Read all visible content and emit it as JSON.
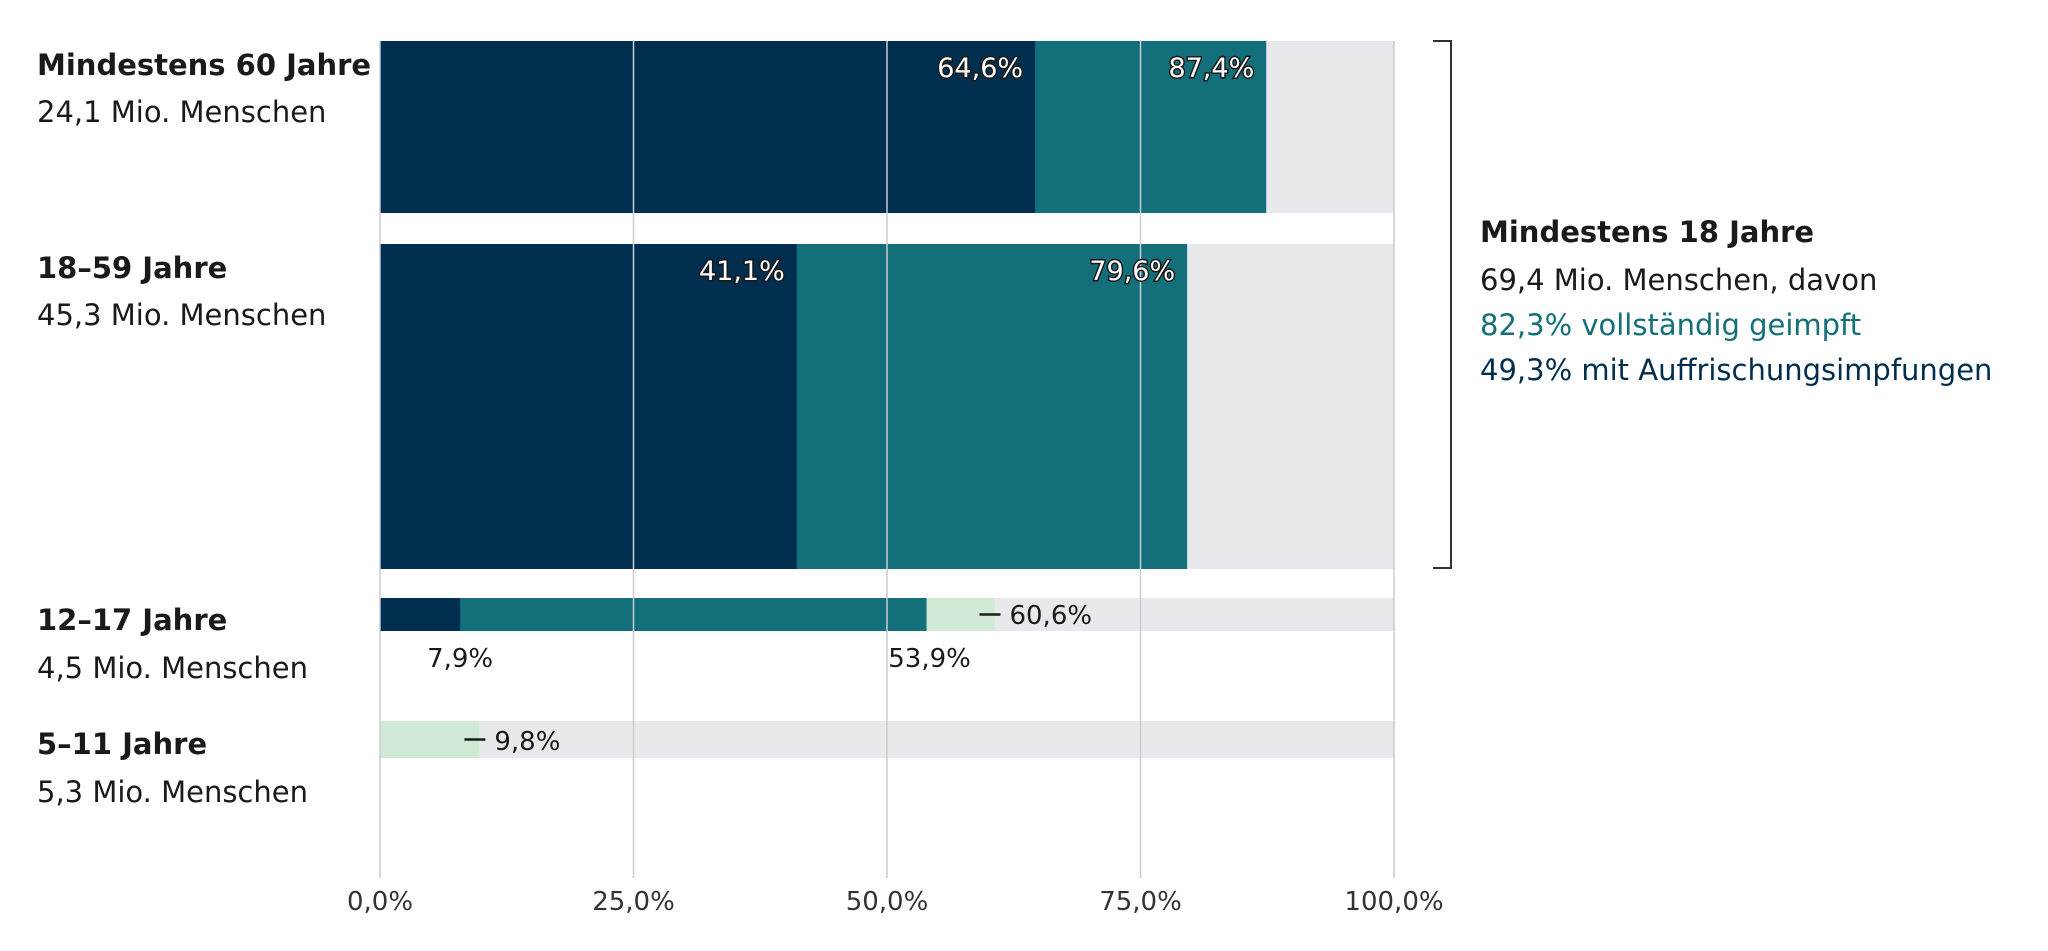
{
  "colors": {
    "booster": "#002e4f",
    "complete": "#13707a",
    "first_dose": "#cfe9d4",
    "track": "#e8e9ec",
    "grid": "#c9ccd1"
  },
  "chart_data": {
    "type": "bar",
    "orientation": "horizontal",
    "stacked": "overlay",
    "xlim": [
      0,
      100
    ],
    "x_ticks": [
      "0,0%",
      "25,0%",
      "50,0%",
      "75,0%",
      "100,0%"
    ],
    "x_tick_values": [
      0,
      25,
      50,
      75,
      100
    ],
    "grid": true,
    "rows": [
      {
        "title": "Mindestens 60 Jahre",
        "subtitle": "24,1 Mio. Menschen",
        "population_mio": 24.1,
        "booster": 64.6,
        "booster_label": "64,6%",
        "complete": 87.4,
        "complete_label": "87,4%"
      },
      {
        "title": "18–59 Jahre",
        "subtitle": "45,3 Mio. Menschen",
        "population_mio": 45.3,
        "booster": 41.1,
        "booster_label": "41,1%",
        "complete": 79.6,
        "complete_label": "79,6%"
      },
      {
        "title": "12–17 Jahre",
        "subtitle": "4,5 Mio. Menschen",
        "population_mio": 4.5,
        "booster": 7.9,
        "booster_label": "7,9%",
        "complete": 53.9,
        "complete_label": "53,9%",
        "first_dose": 60.6,
        "first_dose_label": "60,6%"
      },
      {
        "title": "5–11 Jahre",
        "subtitle": "5,3 Mio. Menschen",
        "population_mio": 5.3,
        "first_dose": 9.8,
        "first_dose_label": "9,8%"
      }
    ],
    "annotation": {
      "title": "Mindestens 18 Jahre",
      "line1": "69,4 Mio. Menschen, davon",
      "line2": "82,3% vollständig geimpft",
      "line3": "49,3% mit Auffrischungsimpfungen",
      "line2_color": "#13707a",
      "line3_color": "#002e4f"
    }
  }
}
